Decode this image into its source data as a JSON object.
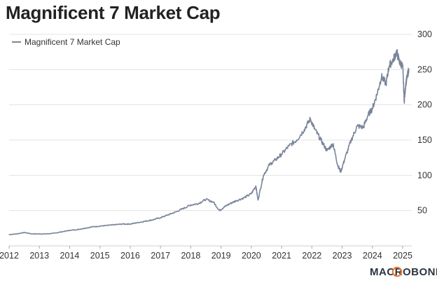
{
  "chart_data": {
    "type": "line",
    "title": "Magnificent 7 Market Cap",
    "xlabel": "",
    "ylabel": "",
    "xlim": [
      2012.0,
      2025.3
    ],
    "ylim": [
      0,
      300
    ],
    "y_ticks": [
      50,
      100,
      150,
      200,
      250,
      300
    ],
    "x_ticks": [
      "2012",
      "2013",
      "2014",
      "2015",
      "2016",
      "2017",
      "2018",
      "2019",
      "2020",
      "2021",
      "2022",
      "2023",
      "2024",
      "2025"
    ],
    "grid": true,
    "y_axis_side": "right",
    "legend_position": "top-left",
    "series": [
      {
        "name": "Magnificent 7 Market Cap",
        "color": "#7a8599",
        "x": [
          2012.0,
          2012.25,
          2012.5,
          2012.75,
          2013.0,
          2013.25,
          2013.5,
          2013.75,
          2014.0,
          2014.25,
          2014.5,
          2014.75,
          2015.0,
          2015.25,
          2015.5,
          2015.75,
          2016.0,
          2016.25,
          2016.5,
          2016.75,
          2017.0,
          2017.25,
          2017.5,
          2017.75,
          2018.0,
          2018.25,
          2018.5,
          2018.75,
          2018.95,
          2019.1,
          2019.3,
          2019.5,
          2019.75,
          2020.0,
          2020.15,
          2020.22,
          2020.4,
          2020.6,
          2020.8,
          2021.0,
          2021.25,
          2021.5,
          2021.75,
          2021.95,
          2022.1,
          2022.3,
          2022.5,
          2022.7,
          2022.85,
          2022.95,
          2023.1,
          2023.3,
          2023.5,
          2023.7,
          2023.85,
          2024.0,
          2024.15,
          2024.3,
          2024.45,
          2024.55,
          2024.7,
          2024.8,
          2024.9,
          2025.0,
          2025.05,
          2025.1,
          2025.15,
          2025.2
        ],
        "values": [
          16,
          17,
          19,
          17,
          17,
          17,
          18,
          20,
          22,
          23,
          25,
          27,
          28,
          29,
          30,
          31,
          31,
          33,
          35,
          37,
          40,
          44,
          48,
          53,
          58,
          60,
          66,
          62,
          50,
          55,
          60,
          64,
          68,
          74,
          85,
          65,
          100,
          115,
          122,
          130,
          142,
          150,
          165,
          180,
          165,
          150,
          135,
          145,
          115,
          105,
          125,
          150,
          170,
          168,
          185,
          195,
          215,
          240,
          230,
          255,
          265,
          275,
          260,
          255,
          205,
          230,
          240,
          250
        ]
      }
    ]
  },
  "legend": {
    "label": "Magnificent 7 Market Cap"
  },
  "brand": {
    "text": "MACROBOND",
    "logo_color": "#e8762b"
  }
}
